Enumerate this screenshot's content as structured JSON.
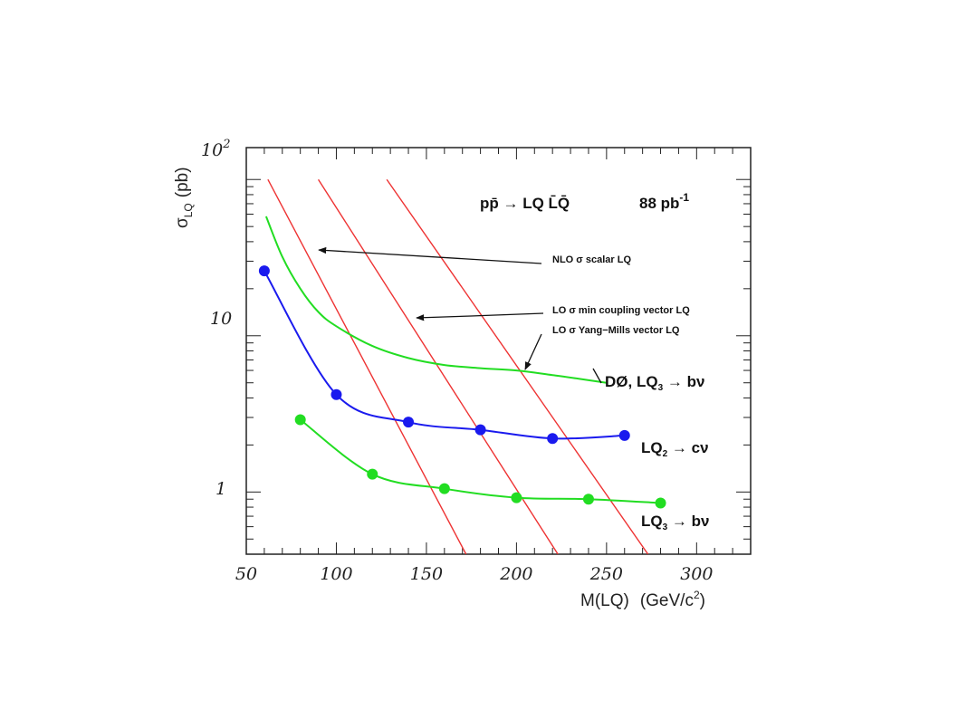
{
  "chart_data": {
    "type": "line",
    "xlabel_main": "M(LQ)",
    "xlabel_units": "(GeV/c",
    "xlabel_units_sup": "2",
    "xlabel_units_close": ")",
    "ylabel_main": "σ",
    "ylabel_sub": "LQ",
    "ylabel_units": "(pb)",
    "xlim": [
      50,
      330
    ],
    "ylim": [
      0.4,
      160
    ],
    "yscale": "log",
    "x_ticks": [
      50,
      100,
      150,
      200,
      250,
      300
    ],
    "y_tick_labels": {
      "y100": {
        "base": "10",
        "exp": "2"
      },
      "y10": "10",
      "y1": "1"
    },
    "title_line": {
      "process": "pp̄ → LQ L̄Q̄",
      "lumi": "88 pb",
      "lumi_exp": "-1"
    },
    "annotations": {
      "nlo_scalar": "NLO σ scalar LQ",
      "lo_min_coupling": "LO σ min coupling vector LQ",
      "lo_yang_mills": "LO σ Yang−Mills vector LQ",
      "d0_limit": "DØ,  LQ",
      "d0_limit_sub": "3",
      "d0_limit_tail": " → bν",
      "lq2_label": "LQ",
      "lq2_sub": "2",
      "lq2_tail": " → cν",
      "lq3_label": "LQ",
      "lq3_sub": "3",
      "lq3_tail": " → bν"
    },
    "series": [
      {
        "name": "LQ2 → cν",
        "color": "#1a1aee",
        "points": [
          [
            60,
            26
          ],
          [
            100,
            4.2
          ],
          [
            140,
            2.8
          ],
          [
            180,
            2.5
          ],
          [
            220,
            2.2
          ],
          [
            260,
            2.3
          ]
        ]
      },
      {
        "name": "LQ3 → bν",
        "color": "#22dd22",
        "points": [
          [
            80,
            2.9
          ],
          [
            120,
            1.3
          ],
          [
            160,
            1.05
          ],
          [
            200,
            0.92
          ],
          [
            240,
            0.9
          ],
          [
            280,
            0.85
          ]
        ]
      },
      {
        "name": "DØ, LQ3 → bν",
        "color": "#22dd22",
        "style": "curve-only",
        "points": [
          [
            61,
            58
          ],
          [
            70,
            32
          ],
          [
            80,
            20
          ],
          [
            90,
            14.2
          ],
          [
            100,
            11.5
          ],
          [
            120,
            8.6
          ],
          [
            140,
            7.2
          ],
          [
            160,
            6.5
          ],
          [
            180,
            6.2
          ],
          [
            200,
            6.0
          ],
          [
            220,
            5.6
          ],
          [
            235,
            5.3
          ],
          [
            250,
            5.0
          ]
        ]
      },
      {
        "name": "NLO σ scalar LQ",
        "color": "#ee3333",
        "style": "theory",
        "points": [
          [
            62,
            100
          ],
          [
            172,
            0.4
          ]
        ]
      },
      {
        "name": "LO σ min coupling vector LQ",
        "color": "#ee3333",
        "style": "theory",
        "points": [
          [
            90,
            100
          ],
          [
            223,
            0.4
          ]
        ]
      },
      {
        "name": "LO σ Yang−Mills vector LQ",
        "color": "#ee3333",
        "style": "theory",
        "points": [
          [
            128,
            100
          ],
          [
            273,
            0.4
          ]
        ]
      }
    ]
  }
}
